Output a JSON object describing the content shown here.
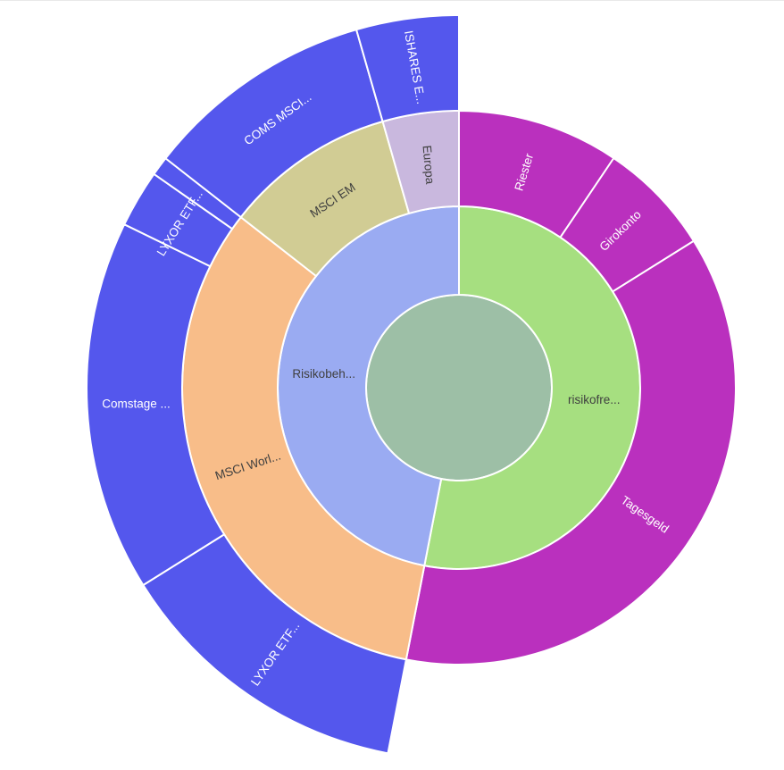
{
  "page": {
    "background": "#ffffff"
  },
  "chart_data": {
    "type": "sunburst",
    "title": "",
    "legend": "none",
    "angle_convention": "degrees clockwise from 12 o'clock",
    "rings": 3,
    "root": {
      "label": "",
      "color": "#9dbfa6"
    },
    "nodes": [
      {
        "label": "risikofre...",
        "color": "#a6df80",
        "text_color": "#3f3f3f",
        "start": 0,
        "end": 191,
        "label_rotation": 0,
        "children": [
          {
            "label": "Riester",
            "color": "#ba30be",
            "text_color": "#ffffff",
            "start": 0,
            "end": 34,
            "label_rotation": -73
          },
          {
            "label": "Girokonto",
            "color": "#ba30be",
            "text_color": "#ffffff",
            "start": 34,
            "end": 58,
            "label_rotation": -44
          },
          {
            "label": "Tagesgeld",
            "color": "#ba30be",
            "text_color": "#ffffff",
            "start": 58,
            "end": 191,
            "label_rotation": 35
          }
        ]
      },
      {
        "label": "Risikobeh...",
        "color": "#9aabf2",
        "text_color": "#3f3f3f",
        "start": 191,
        "end": 360,
        "label_rotation": 0,
        "children": [
          {
            "label": "MSCI Worl...",
            "color": "#f8bd89",
            "text_color": "#3f3f3f",
            "start": 191,
            "end": 308,
            "label_rotation": -18,
            "children": [
              {
                "label": "LYXOR ETF...",
                "color": "#5457ed",
                "text_color": "#ffffff",
                "start": 191,
                "end": 238,
                "label_rotation": -55
              },
              {
                "label": "Comstage ...",
                "color": "#5457ed",
                "text_color": "#ffffff",
                "start": 238,
                "end": 296,
                "label_rotation": 0
              },
              {
                "label": "LYXOR ETF...",
                "color": "#5457ed",
                "text_color": "#ffffff",
                "start": 296,
                "end": 305,
                "label_rotation": -58
              },
              {
                "label": "",
                "color": "#5457ed",
                "text_color": "#ffffff",
                "start": 305,
                "end": 308
              }
            ]
          },
          {
            "label": "MSCI EM",
            "color": "#d1cc94",
            "text_color": "#3f3f3f",
            "start": 308,
            "end": 344,
            "label_rotation": -34,
            "children": [
              {
                "label": "COMS MSCI...",
                "color": "#5457ed",
                "text_color": "#ffffff",
                "start": 308,
                "end": 344,
                "label_rotation": -36
              }
            ]
          },
          {
            "label": "Europa",
            "color": "#c9b8de",
            "text_color": "#3f3f3f",
            "start": 344,
            "end": 360,
            "label_rotation": 85,
            "children": [
              {
                "label": "ISHARES E...",
                "color": "#5457ed",
                "text_color": "#ffffff",
                "start": 344,
                "end": 360,
                "label_rotation": 80
              }
            ]
          }
        ]
      }
    ]
  }
}
